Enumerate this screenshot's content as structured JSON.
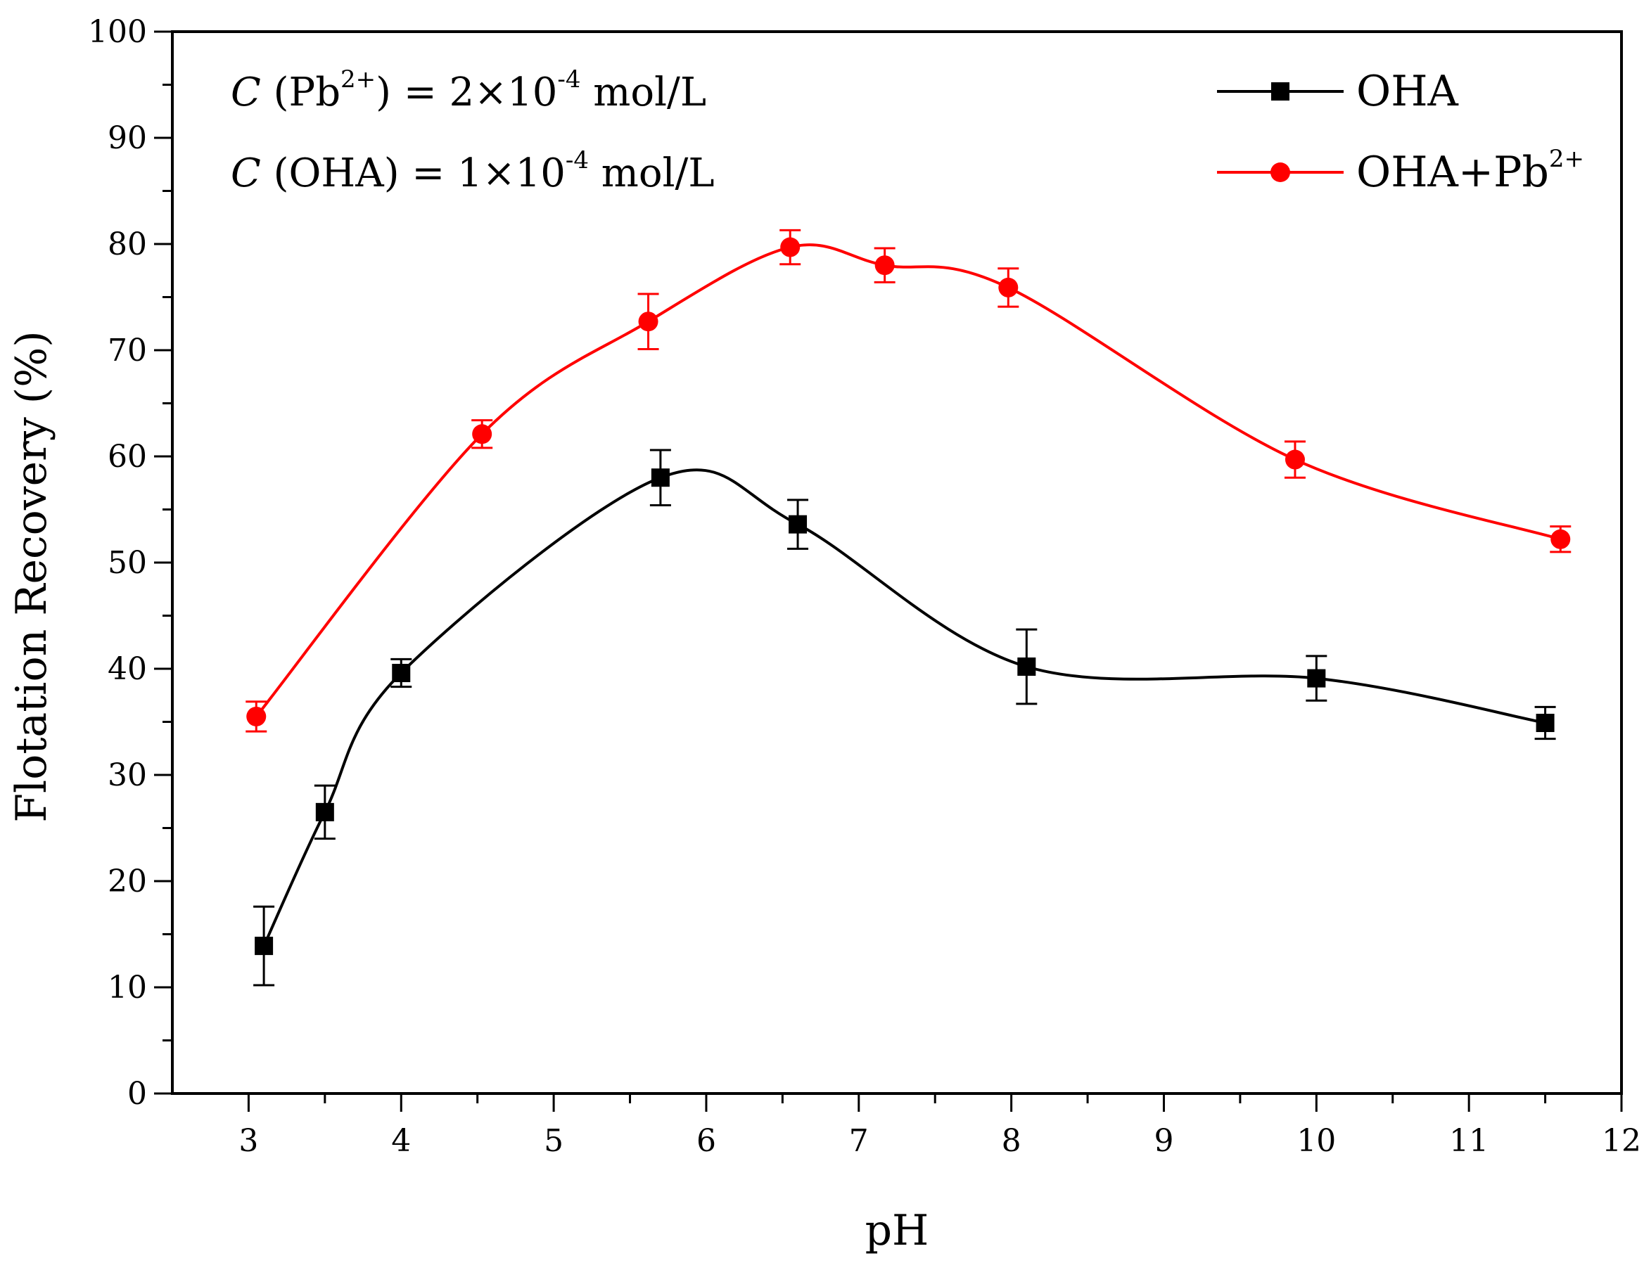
{
  "chart_data": {
    "type": "line",
    "title": "",
    "xlabel": "pH",
    "ylabel": "Flotation Recovery (%)",
    "xlim": [
      2.5,
      12
    ],
    "ylim": [
      0,
      100
    ],
    "x_ticks": [
      3,
      4,
      5,
      6,
      7,
      8,
      9,
      10,
      11,
      12
    ],
    "y_ticks": [
      0,
      10,
      20,
      30,
      40,
      50,
      60,
      70,
      80,
      90,
      100
    ],
    "x_tick_labels": [
      "3",
      "4",
      "5",
      "6",
      "7",
      "8",
      "9",
      "10",
      "11",
      "12"
    ],
    "y_tick_labels": [
      "0",
      "10",
      "20",
      "30",
      "40",
      "50",
      "60",
      "70",
      "80",
      "90",
      "100"
    ],
    "grid": false,
    "smooth": true,
    "legend": {
      "position": "top-right"
    },
    "annotations": [
      {
        "italic": "C",
        "pre": " (Pb",
        "sup1": "2+",
        "mid": ") = 2×10",
        "sup2": "-4",
        "post": " mol/L"
      },
      {
        "italic": "C",
        "pre": " (OHA) = 1×10",
        "sup1": "",
        "mid": "",
        "sup2": "-4",
        "post": " mol/L"
      }
    ],
    "series": [
      {
        "name": "OHA",
        "legend_base": "OHA",
        "legend_sup": "",
        "color": "#000000",
        "marker": "square",
        "x": [
          3.1,
          3.5,
          4.0,
          5.7,
          6.6,
          8.1,
          10.0,
          11.5
        ],
        "y": [
          13.9,
          26.5,
          39.6,
          58.0,
          53.6,
          40.2,
          39.1,
          34.9
        ],
        "error": [
          3.7,
          2.5,
          1.3,
          2.6,
          2.3,
          3.5,
          2.1,
          1.5
        ]
      },
      {
        "name": "OHA+Pb2+",
        "legend_base": "OHA+Pb",
        "legend_sup": "2+",
        "color": "#ff0000",
        "marker": "circle",
        "x": [
          3.05,
          4.53,
          5.62,
          6.55,
          7.17,
          7.98,
          9.86,
          11.6
        ],
        "y": [
          35.5,
          62.1,
          72.7,
          79.7,
          78.0,
          75.9,
          59.7,
          52.2
        ],
        "error": [
          1.4,
          1.3,
          2.6,
          1.6,
          1.6,
          1.8,
          1.7,
          1.2
        ]
      }
    ]
  }
}
